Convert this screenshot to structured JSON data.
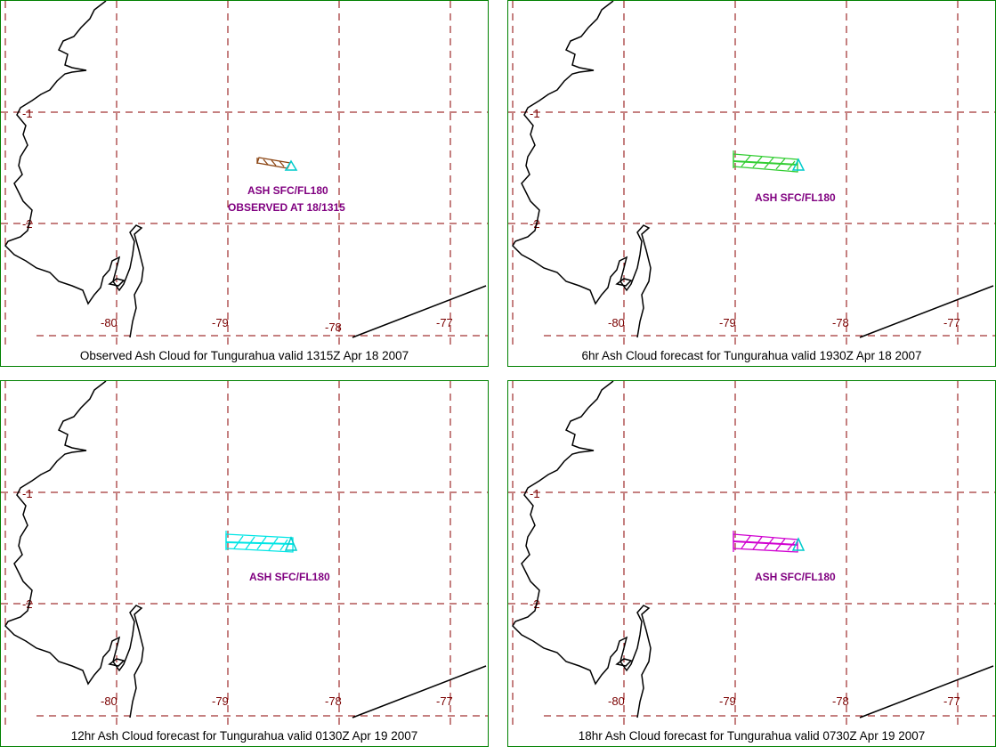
{
  "colors": {
    "border": "#008000",
    "grid": "#8b0000",
    "coast": "#000000",
    "label": "#800080",
    "obs_cloud": "#8b4513",
    "fc6_cloud": "#32cd32",
    "fc12_cloud": "#00e5e5",
    "fc18_cloud": "#d000d0",
    "vent_marker": "#00cccc"
  },
  "icons": {
    "vent": "triangle-vent-icon"
  },
  "lat_labels": [
    "-1",
    "-2"
  ],
  "lon_labels": [
    "-80",
    "-79",
    "-78",
    "-77"
  ],
  "panels": [
    {
      "caption": "Observed Ash Cloud for Tungurahua valid 1315Z Apr 18 2007",
      "cloud_label": "ASH SFC/FL180",
      "cloud_label2": "OBSERVED AT 18/1315",
      "cloud_color": "#8b4513"
    },
    {
      "caption": "6hr Ash Cloud forecast for Tungurahua valid 1930Z Apr 18 2007",
      "cloud_label": "ASH SFC/FL180",
      "cloud_color": "#32cd32"
    },
    {
      "caption": "12hr Ash Cloud forecast for Tungurahua valid 0130Z Apr 19 2007",
      "cloud_label": "ASH SFC/FL180",
      "cloud_color": "#00e5e5"
    },
    {
      "caption": "18hr Ash Cloud forecast for Tungurahua valid 0730Z Apr 19 2007",
      "cloud_label": "ASH SFC/FL180",
      "cloud_color": "#d000d0"
    }
  ]
}
